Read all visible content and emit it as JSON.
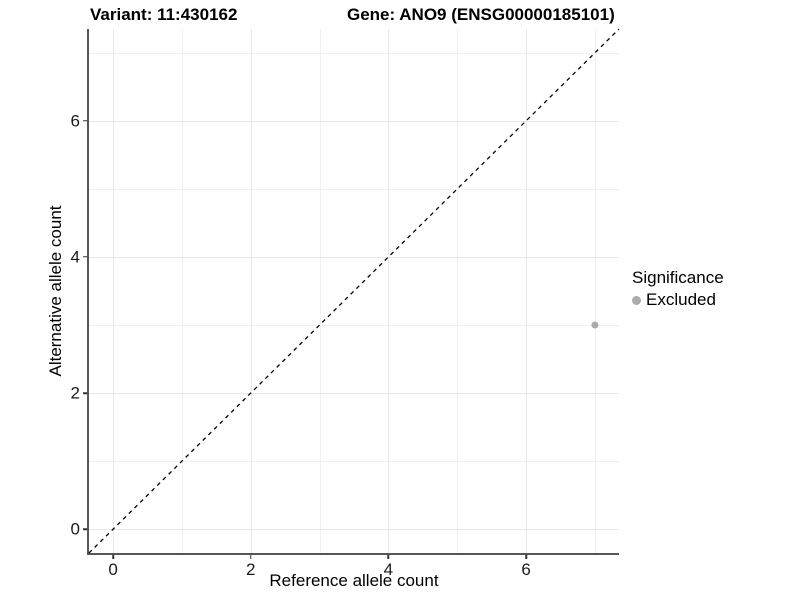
{
  "header": {
    "variant_title": "Variant: 11:430162",
    "gene_title": "Gene: ANO9 (ENSG00000185101)"
  },
  "legend": {
    "title": "Significance",
    "items": [
      {
        "label": "Excluded",
        "color": "#ababab",
        "marker": "circle"
      }
    ]
  },
  "chart_data": {
    "type": "scatter",
    "title": "Variant: 11:430162 | Gene: ANO9 (ENSG00000185101)",
    "xlabel": "Reference allele count",
    "ylabel": "Alternative allele count",
    "xlim": [
      -0.35,
      7.35
    ],
    "ylim": [
      -0.35,
      7.35
    ],
    "x_major_ticks": [
      0,
      2,
      4,
      6
    ],
    "x_minor_gridlines": [
      1,
      3,
      5,
      7
    ],
    "y_major_ticks": [
      0,
      2,
      4,
      6
    ],
    "y_minor_gridlines": [
      1,
      3,
      5,
      7
    ],
    "grid": true,
    "legend_position": "right",
    "reference_line": {
      "kind": "identity y=x",
      "style": "dashed",
      "color": "#000000",
      "dash": [
        4,
        4
      ]
    },
    "series": [
      {
        "name": "Excluded",
        "color": "#ababab",
        "points": [
          {
            "x": 7,
            "y": 3
          }
        ]
      }
    ]
  },
  "style": {
    "major_grid_color": "#e8e8e8",
    "minor_grid_color": "#f1f1f1",
    "axis_line_color": "#565656",
    "tick_color": "#333333",
    "point_radius": 3.5,
    "background": "#ffffff"
  }
}
